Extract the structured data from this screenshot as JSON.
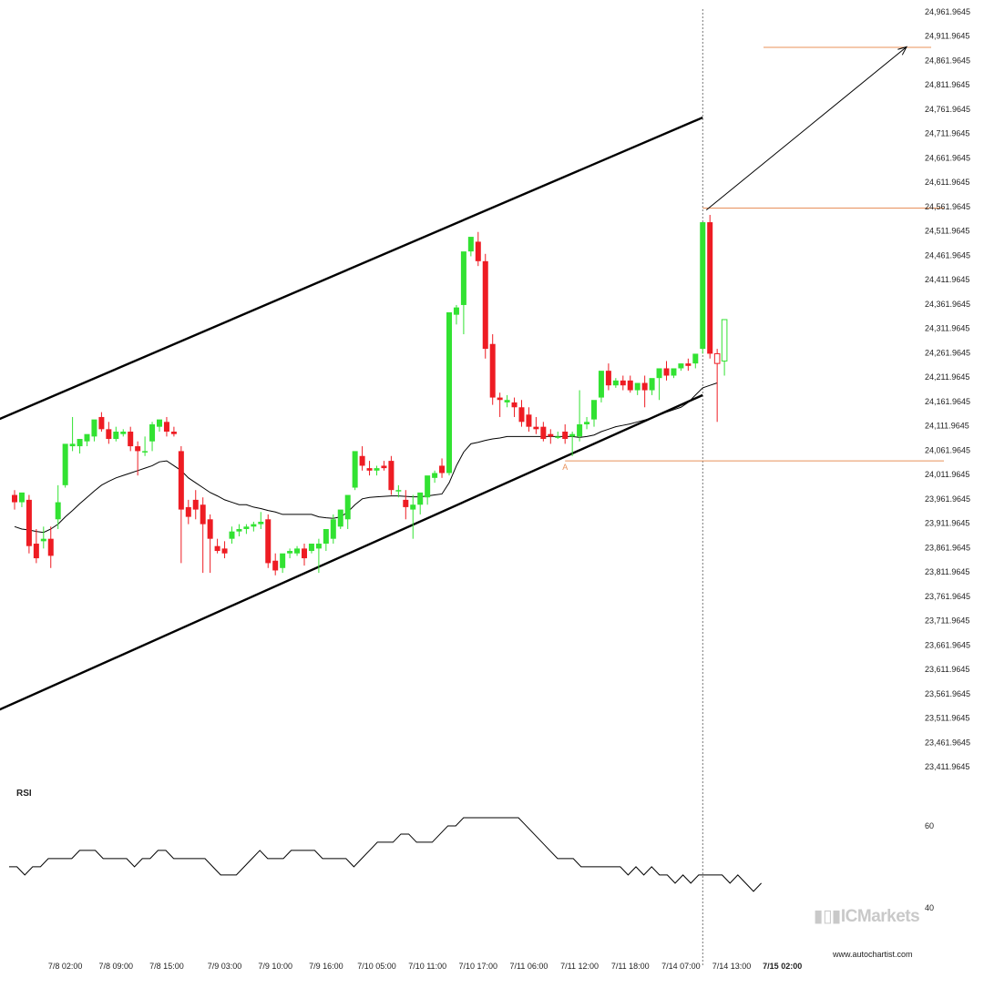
{
  "chart_data": {
    "type": "candlestick",
    "ylim": [
      23385,
      24990
    ],
    "price_ticks": [
      "24,961.9645",
      "24,911.9645",
      "24,861.9645",
      "24,811.9645",
      "24,761.9645",
      "24,711.9645",
      "24,661.9645",
      "24,611.9645",
      "24,561.9645",
      "24,511.9645",
      "24,461.9645",
      "24,411.9645",
      "24,361.9645",
      "24,311.9645",
      "24,261.9645",
      "24,211.9645",
      "24,161.9645",
      "24,111.9645",
      "24,061.9645",
      "24,011.9645",
      "23,961.9645",
      "23,911.9645",
      "23,861.9645",
      "23,811.9645",
      "23,761.9645",
      "23,711.9645",
      "23,661.9645",
      "23,611.9645",
      "23,561.9645",
      "23,511.9645",
      "23,461.9645",
      "23,411.9645"
    ],
    "time_labels": [
      {
        "label": "7/8 02:00",
        "index": 7
      },
      {
        "label": "7/8 09:00",
        "index": 14
      },
      {
        "label": "7/8 15:00",
        "index": 21
      },
      {
        "label": "7/9 03:00",
        "index": 29
      },
      {
        "label": "7/9 10:00",
        "index": 36
      },
      {
        "label": "7/9 16:00",
        "index": 43
      },
      {
        "label": "7/10 05:00",
        "index": 50
      },
      {
        "label": "7/10 11:00",
        "index": 57
      },
      {
        "label": "7/10 17:00",
        "index": 64
      },
      {
        "label": "7/11 06:00",
        "index": 71
      },
      {
        "label": "7/11 12:00",
        "index": 78
      },
      {
        "label": "7/11 18:00",
        "index": 85
      },
      {
        "label": "7/14 07:00",
        "index": 92
      },
      {
        "label": "7/14 13:00",
        "index": 99
      },
      {
        "label": "7/15 02:00",
        "index": 106,
        "bold": true
      }
    ],
    "candles": [
      [
        23970,
        23980,
        23955,
        23940
      ],
      [
        23955,
        23965,
        23975,
        23945
      ],
      [
        23960,
        23970,
        23865,
        23850
      ],
      [
        23870,
        23900,
        23840,
        23830
      ],
      [
        23875,
        23905,
        23880,
        23860
      ],
      [
        23880,
        23905,
        23845,
        23820
      ],
      [
        23920,
        23990,
        23955,
        23900
      ],
      [
        23990,
        24050,
        24075,
        23985
      ],
      [
        24070,
        24130,
        24075,
        24060
      ],
      [
        24070,
        24080,
        24085,
        24055
      ],
      [
        24080,
        24090,
        24095,
        24070
      ],
      [
        24090,
        24110,
        24125,
        24080
      ],
      [
        24130,
        24140,
        24105,
        24100
      ],
      [
        24105,
        24120,
        24085,
        24075
      ],
      [
        24085,
        24110,
        24100,
        24080
      ],
      [
        24095,
        24105,
        24100,
        24090
      ],
      [
        24100,
        24110,
        24070,
        24060
      ],
      [
        24070,
        24080,
        24060,
        24010
      ],
      [
        24060,
        24090,
        24060,
        24050
      ],
      [
        24080,
        24120,
        24115,
        24060
      ],
      [
        24110,
        24120,
        24125,
        24100
      ],
      [
        24120,
        24130,
        24100,
        24090
      ],
      [
        24100,
        24110,
        24095,
        24090
      ],
      [
        24060,
        24070,
        23940,
        23830
      ],
      [
        23945,
        23960,
        23925,
        23910
      ],
      [
        23960,
        23980,
        23940,
        23920
      ],
      [
        23950,
        23965,
        23910,
        23810
      ],
      [
        23920,
        23930,
        23880,
        23810
      ],
      [
        23865,
        23880,
        23855,
        23850
      ],
      [
        23860,
        23875,
        23850,
        23840
      ],
      [
        23880,
        23905,
        23895,
        23870
      ],
      [
        23895,
        23910,
        23900,
        23885
      ],
      [
        23900,
        23910,
        23905,
        23890
      ],
      [
        23905,
        23915,
        23910,
        23895
      ],
      [
        23910,
        23935,
        23915,
        23900
      ],
      [
        23920,
        23930,
        23830,
        23820
      ],
      [
        23835,
        23850,
        23815,
        23805
      ],
      [
        23820,
        23830,
        23850,
        23810
      ],
      [
        23850,
        23860,
        23855,
        23840
      ],
      [
        23850,
        23865,
        23860,
        23845
      ],
      [
        23860,
        23870,
        23840,
        23825
      ],
      [
        23855,
        23870,
        23870,
        23850
      ],
      [
        23860,
        23880,
        23870,
        23810
      ],
      [
        23870,
        23880,
        23900,
        23855
      ],
      [
        23880,
        23930,
        23920,
        23870
      ],
      [
        23905,
        23920,
        23940,
        23900
      ],
      [
        23920,
        23930,
        23970,
        23900
      ],
      [
        23985,
        24000,
        24060,
        23980
      ],
      [
        24050,
        24070,
        24030,
        24020
      ],
      [
        24025,
        24040,
        24020,
        24010
      ],
      [
        24020,
        24030,
        24025,
        24010
      ],
      [
        24030,
        24040,
        24025,
        24020
      ],
      [
        24040,
        24050,
        23980,
        23970
      ],
      [
        23980,
        23990,
        23980,
        23965
      ],
      [
        23960,
        23980,
        23945,
        23920
      ],
      [
        23940,
        23970,
        23950,
        23880
      ],
      [
        23950,
        23965,
        23975,
        23930
      ],
      [
        23965,
        23980,
        24010,
        23950
      ],
      [
        24005,
        24020,
        24015,
        23995
      ],
      [
        24030,
        24045,
        24015,
        24005
      ],
      [
        24015,
        24025,
        24345,
        24010
      ],
      [
        24340,
        24360,
        24355,
        24320
      ],
      [
        24360,
        24370,
        24470,
        24300
      ],
      [
        24470,
        24490,
        24500,
        24460
      ],
      [
        24490,
        24510,
        24450,
        24440
      ],
      [
        24450,
        24465,
        24270,
        24250
      ],
      [
        24280,
        24300,
        24170,
        24155
      ],
      [
        24170,
        24180,
        24165,
        24130
      ],
      [
        24160,
        24175,
        24165,
        24150
      ],
      [
        24160,
        24170,
        24150,
        24130
      ],
      [
        24150,
        24165,
        24120,
        24110
      ],
      [
        24135,
        24150,
        24110,
        24100
      ],
      [
        24110,
        24130,
        24105,
        24095
      ],
      [
        24110,
        24120,
        24085,
        24080
      ],
      [
        24095,
        24105,
        24090,
        24075
      ],
      [
        24090,
        24100,
        24090,
        24085
      ],
      [
        24100,
        24115,
        24085,
        24075
      ],
      [
        24090,
        24100,
        24095,
        24050
      ],
      [
        24090,
        24185,
        24115,
        24080
      ],
      [
        24115,
        24130,
        24120,
        24105
      ],
      [
        24125,
        24145,
        24165,
        24110
      ],
      [
        24170,
        24180,
        24225,
        24160
      ],
      [
        24225,
        24240,
        24195,
        24185
      ],
      [
        24195,
        24210,
        24205,
        24190
      ],
      [
        24205,
        24215,
        24195,
        24185
      ],
      [
        24205,
        24215,
        24185,
        24180
      ],
      [
        24185,
        24195,
        24200,
        24175
      ],
      [
        24200,
        24215,
        24185,
        24150
      ],
      [
        24185,
        24195,
        24210,
        24175
      ],
      [
        24210,
        24230,
        24230,
        24165
      ],
      [
        24230,
        24245,
        24215,
        24205
      ],
      [
        24215,
        24225,
        24230,
        24210
      ],
      [
        24230,
        24240,
        24240,
        24225
      ],
      [
        24240,
        24250,
        24235,
        24225
      ],
      [
        24240,
        24255,
        24260,
        24230
      ],
      [
        24270,
        24300,
        24530,
        24260
      ],
      [
        24530,
        24545,
        24260,
        24250
      ],
      [
        24260,
        24270,
        24240,
        24120
      ],
      [
        24245,
        24255,
        24330,
        24215
      ]
    ],
    "moving_average": [
      23905,
      23900,
      23898,
      23895,
      23893,
      23900,
      23910,
      23925,
      23938,
      23952,
      23965,
      23978,
      23990,
      23998,
      24005,
      24010,
      24015,
      24020,
      24025,
      24030,
      24038,
      24040,
      24030,
      24020,
      24005,
      23995,
      23985,
      23975,
      23968,
      23960,
      23955,
      23950,
      23950,
      23945,
      23942,
      23938,
      23935,
      23930,
      23930,
      23930,
      23930,
      23930,
      23925,
      23923,
      23922,
      23925,
      23935,
      23950,
      23962,
      23965,
      23966,
      23967,
      23968,
      23968,
      23967,
      23966,
      23966,
      23968,
      23970,
      23972,
      23995,
      24030,
      24058,
      24075,
      24078,
      24082,
      24085,
      24087,
      24090,
      24090,
      24090,
      24090,
      24090,
      24090,
      24090,
      24090,
      24090,
      24090,
      24088,
      24090,
      24093,
      24100,
      24105,
      24110,
      24113,
      24116,
      24120,
      24124,
      24128,
      24134,
      24140,
      24145,
      24150,
      24160,
      24175,
      24190,
      24195,
      24200
    ],
    "last_candle_x": 100,
    "chart_pattern": {
      "type": "ascending channel",
      "upper_line": {
        "from": [
          -3,
          24120
        ],
        "to": [
          95,
          24745
        ]
      },
      "lower_line": {
        "from": [
          -3,
          23523
        ],
        "to": [
          95,
          24175
        ]
      },
      "breakout_level": 24559,
      "breakout_from": [
        95,
        24555
      ],
      "target_level": 24889,
      "target_to": [
        118,
        24890
      ],
      "support_level": 24040,
      "point_label": "A",
      "point_x": 76
    },
    "rsi": {
      "label": "RSI",
      "ticks": [
        "60",
        "40"
      ],
      "tick_values": [
        60,
        40
      ],
      "ylim": [
        31.5,
        66
      ],
      "values": [
        50,
        50,
        48,
        50,
        50,
        52,
        52,
        52,
        52,
        54,
        54,
        54,
        52,
        52,
        52,
        52,
        50,
        52,
        52,
        54,
        54,
        52,
        52,
        52,
        52,
        52,
        50,
        48,
        48,
        48,
        50,
        52,
        54,
        52,
        52,
        52,
        54,
        54,
        54,
        54,
        52,
        52,
        52,
        52,
        50,
        52,
        54,
        56,
        56,
        56,
        58,
        58,
        56,
        56,
        56,
        58,
        60,
        60,
        62,
        62,
        62,
        62,
        62,
        62,
        62,
        62,
        60,
        58,
        56,
        54,
        52,
        52,
        52,
        50,
        50,
        50,
        50,
        50,
        50,
        48,
        50,
        48,
        50,
        48,
        48,
        46,
        48,
        46,
        48,
        48,
        48,
        48,
        46,
        48,
        46,
        44,
        46
      ]
    },
    "vertical_marker_x": 95
  },
  "branding": {
    "logo_icon": "bar-chart-icon",
    "logo_text": "ICMarkets",
    "credit": "www.autochartist.com"
  }
}
